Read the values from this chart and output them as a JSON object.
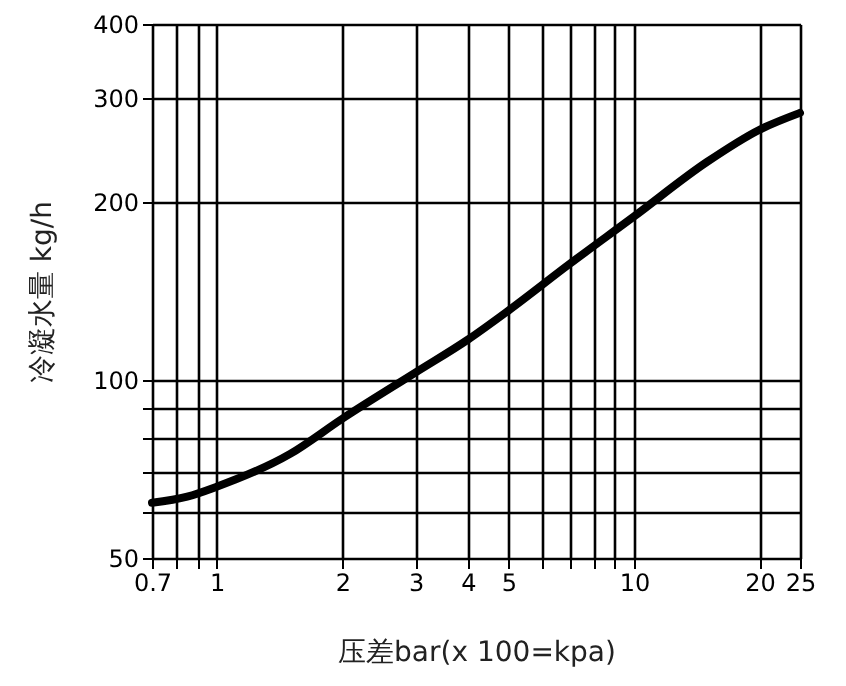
{
  "chart_data": {
    "type": "line",
    "xlabel": "压差bar(x 100=kpa)",
    "ylabel": "冷凝水量 kg/h",
    "log": "xy",
    "grid": true,
    "color": "#000000",
    "x": [
      0.7,
      0.85,
      1,
      1.5,
      2,
      3,
      4,
      5,
      7,
      10,
      15,
      20,
      25
    ],
    "values": [
      62,
      63.5,
      66,
      75,
      86,
      103,
      117,
      131,
      157,
      189,
      234,
      265,
      283
    ],
    "xlim": [
      0.7,
      25
    ],
    "ylim": [
      50,
      400
    ],
    "xticks": [
      0.7,
      {
        "value": 0.8,
        "label": null
      },
      {
        "value": 0.9,
        "label": null
      },
      1,
      2,
      3,
      4,
      5,
      {
        "value": 6,
        "label": null
      },
      {
        "value": 7,
        "label": null
      },
      {
        "value": 8,
        "label": null
      },
      {
        "value": 9,
        "label": null
      },
      10,
      20,
      25
    ],
    "yticks": [
      50,
      {
        "value": 60,
        "label": null
      },
      {
        "value": 70,
        "label": null
      },
      {
        "value": 80,
        "label": null
      },
      {
        "value": 90,
        "label": null
      },
      100,
      200,
      300,
      400
    ]
  }
}
